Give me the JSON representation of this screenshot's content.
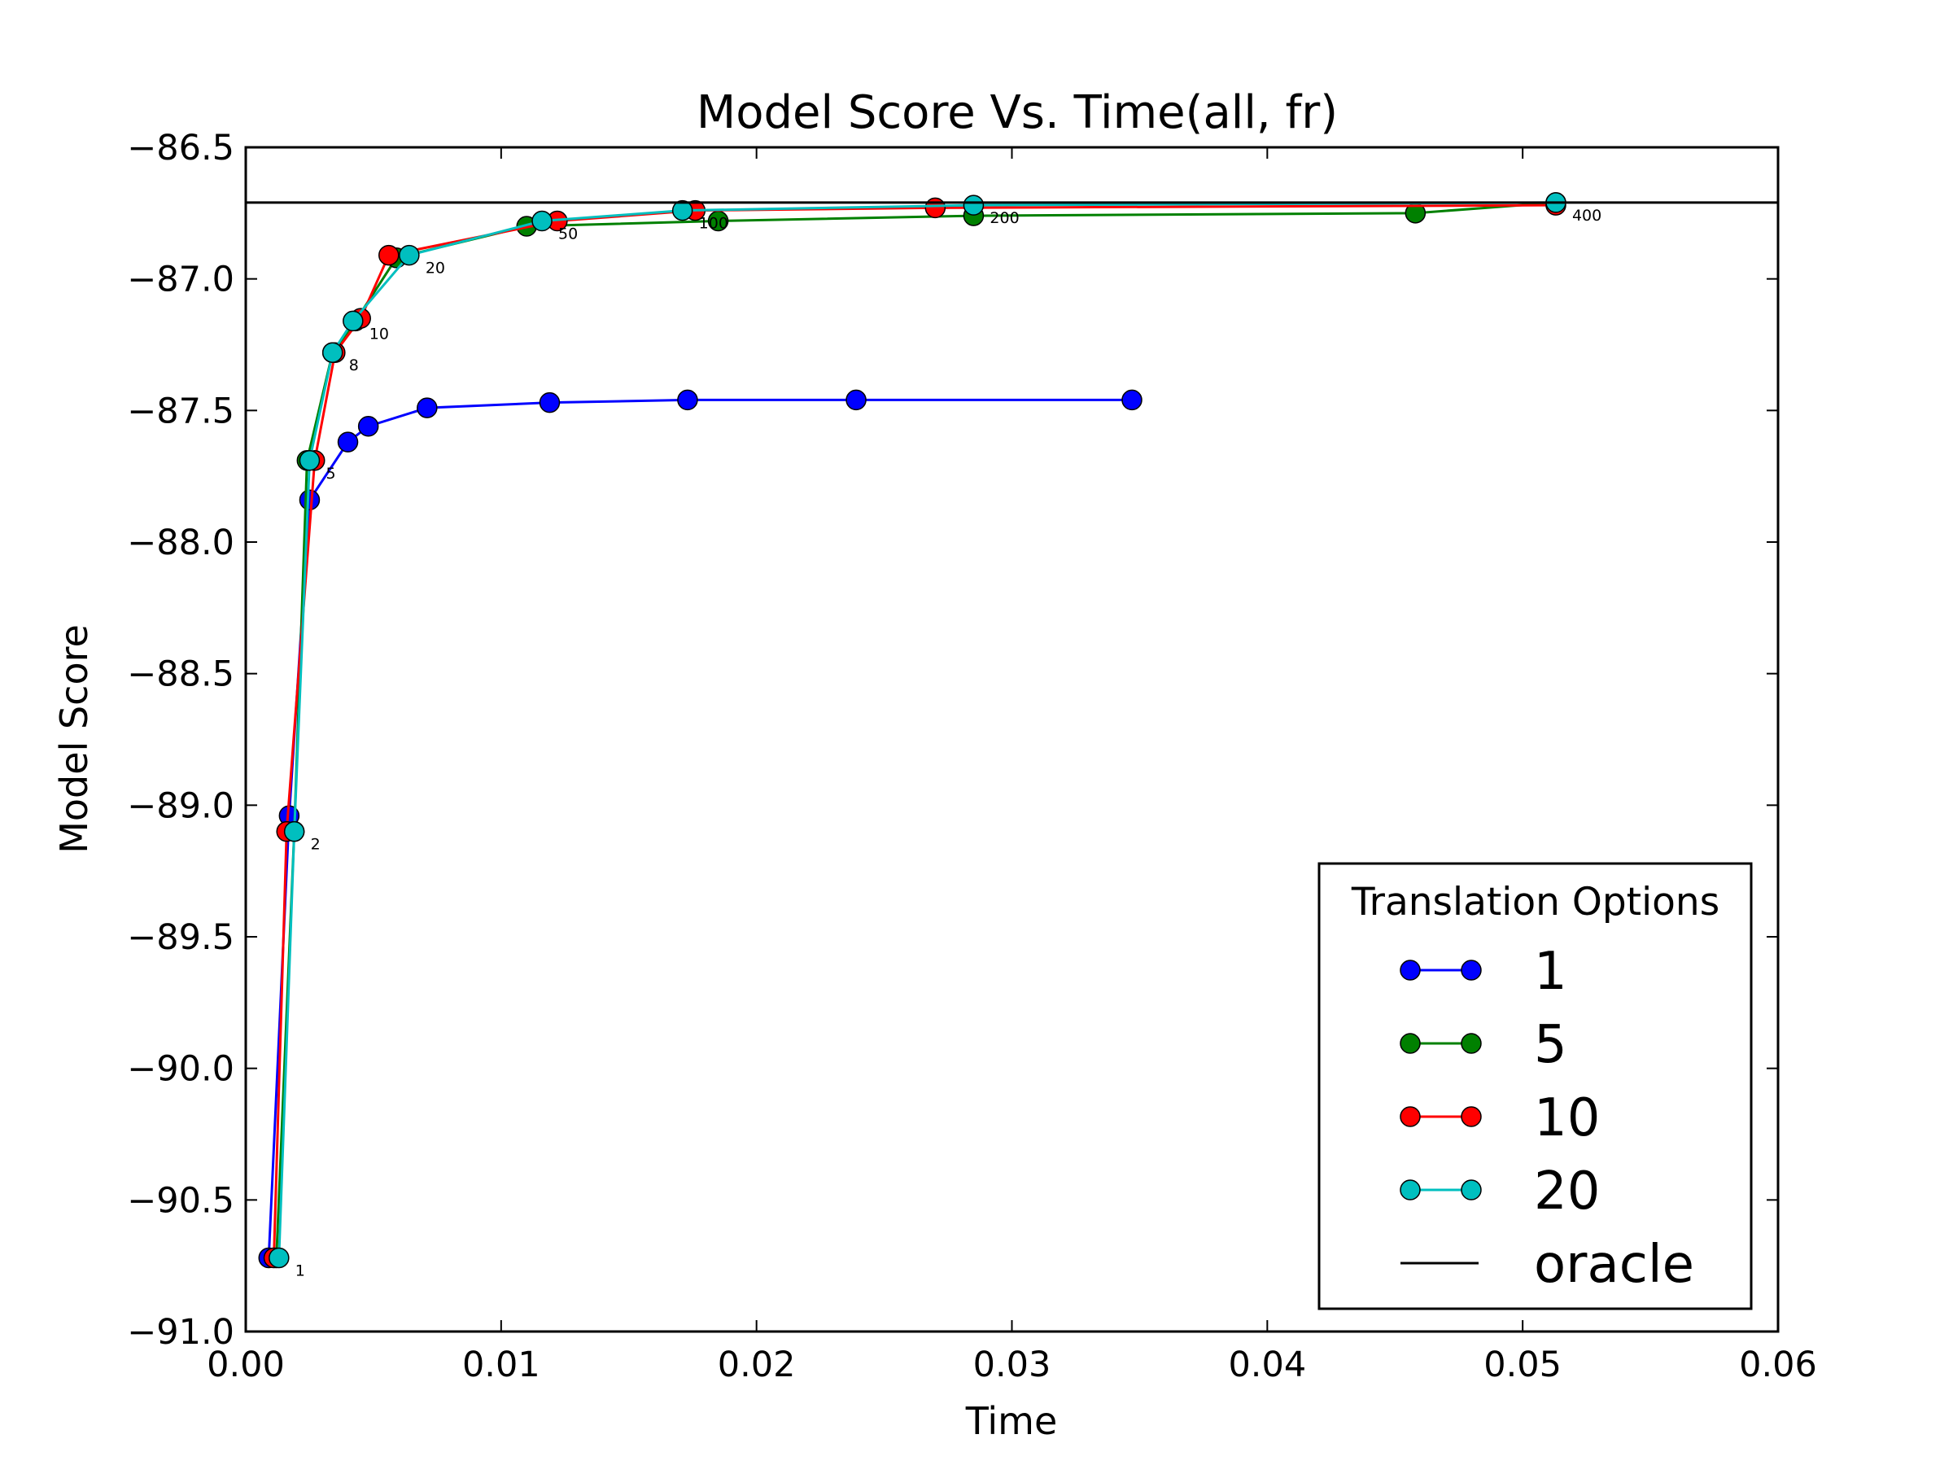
{
  "chart_data": {
    "type": "line",
    "title": "Model Score Vs. Time(all, fr)",
    "xlabel": "Time",
    "ylabel": "Model Score",
    "xlim": [
      0.0,
      0.06
    ],
    "ylim": [
      -91.0,
      -86.5
    ],
    "xticks": [
      "0.00",
      "0.01",
      "0.02",
      "0.03",
      "0.04",
      "0.05",
      "0.06"
    ],
    "yticks": [
      "−91.0",
      "−90.5",
      "−90.0",
      "−89.5",
      "−89.0",
      "−88.5",
      "−88.0",
      "−87.5",
      "−87.0",
      "−86.5"
    ],
    "grid": false,
    "legend": {
      "title": "Translation Options",
      "position": "bottom-right"
    },
    "series": [
      {
        "name": "1",
        "color": "#0000ff",
        "marker": "circle",
        "x": [
          0.0009,
          0.0017,
          0.0025,
          0.004,
          0.0048,
          0.0071,
          0.0119,
          0.0173,
          0.0239,
          0.0347
        ],
        "y": [
          -90.72,
          -89.04,
          -87.84,
          -87.62,
          -87.56,
          -87.49,
          -87.47,
          -87.46,
          -87.46,
          -87.46
        ]
      },
      {
        "name": "5",
        "color": "#008000",
        "marker": "circle",
        "x": [
          0.0012,
          0.0019,
          0.0024,
          0.0034,
          0.0043,
          0.0059,
          0.011,
          0.0185,
          0.0285,
          0.0458,
          0.0513
        ],
        "y": [
          -90.72,
          -89.1,
          -87.69,
          -87.28,
          -87.16,
          -86.92,
          -86.8,
          -86.78,
          -86.76,
          -86.75,
          -86.71
        ]
      },
      {
        "name": "10",
        "color": "#ff0000",
        "marker": "circle",
        "x": [
          0.0011,
          0.0016,
          0.0027,
          0.0035,
          0.0045,
          0.0056,
          0.0122,
          0.0176,
          0.027,
          0.0513
        ],
        "y": [
          -90.72,
          -89.1,
          -87.69,
          -87.28,
          -87.15,
          -86.91,
          -86.78,
          -86.74,
          -86.73,
          -86.72
        ]
      },
      {
        "name": "20",
        "color": "#00bfbf",
        "marker": "circle",
        "x": [
          0.0013,
          0.0019,
          0.0025,
          0.0034,
          0.0042,
          0.0064,
          0.0116,
          0.0171,
          0.0285,
          0.0513
        ],
        "y": [
          -90.72,
          -89.1,
          -87.69,
          -87.28,
          -87.16,
          -86.91,
          -86.78,
          -86.74,
          -86.72,
          -86.71
        ]
      },
      {
        "name": "oracle",
        "color": "#000000",
        "marker": "none",
        "y_constant": -86.71
      }
    ],
    "annotations": [
      {
        "text": "1",
        "x": 0.0013,
        "y": -90.72
      },
      {
        "text": "2",
        "x": 0.0019,
        "y": -89.1
      },
      {
        "text": "5",
        "x": 0.0025,
        "y": -87.69
      },
      {
        "text": "8",
        "x": 0.0034,
        "y": -87.28
      },
      {
        "text": "10",
        "x": 0.0042,
        "y": -87.16
      },
      {
        "text": "20",
        "x": 0.0064,
        "y": -86.91
      },
      {
        "text": "50",
        "x": 0.0116,
        "y": -86.78
      },
      {
        "text": "100",
        "x": 0.0171,
        "y": -86.74
      },
      {
        "text": "200",
        "x": 0.0285,
        "y": -86.72
      },
      {
        "text": "400",
        "x": 0.0513,
        "y": -86.71
      }
    ]
  }
}
